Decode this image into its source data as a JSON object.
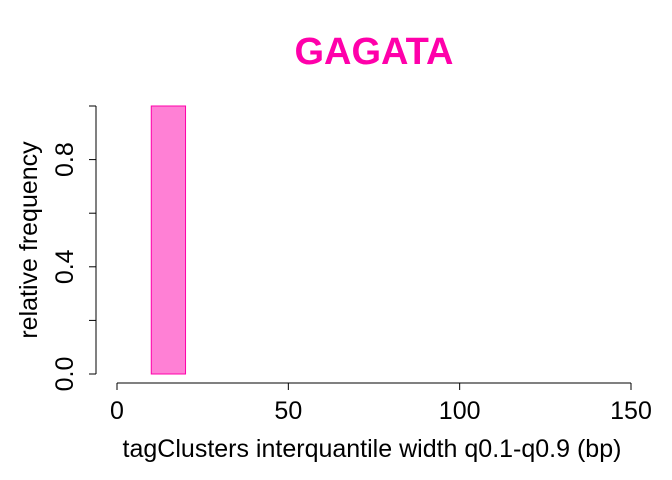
{
  "chart_data": {
    "type": "bar",
    "title": "GAGATA",
    "xlabel": "tagClusters interquantile width q0.1-q0.9 (bp)",
    "ylabel": "relative frequency",
    "xlim": [
      0,
      150
    ],
    "ylim": [
      0,
      1
    ],
    "x_ticks": [
      "0",
      "50",
      "100",
      "150"
    ],
    "y_ticks": [
      "0.0",
      "0.4",
      "0.8"
    ],
    "bins": [
      {
        "x_start": 10,
        "x_end": 20,
        "value": 1.0
      }
    ],
    "grid": false,
    "colors": {
      "title": "#ff00aa",
      "bar_fill": "#ff80d5",
      "bar_stroke": "#ff00aa"
    }
  }
}
